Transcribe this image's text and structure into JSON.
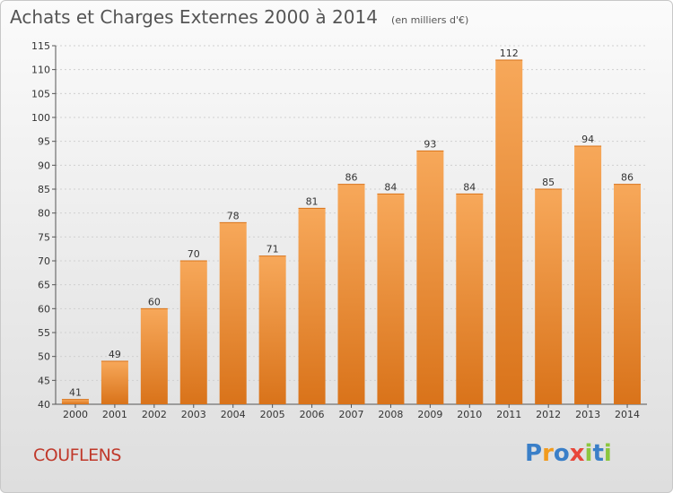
{
  "header": {
    "title": "Achats et Charges Externes 2000 à 2014",
    "subtitle": "(en milliers d'€)"
  },
  "footer": {
    "commune": "COUFLENS",
    "logo_letters": [
      "P",
      "r",
      "o",
      "x",
      "i",
      "t",
      "i"
    ]
  },
  "colors": {
    "bar_light": "#f7a85a",
    "bar_dark": "#d9731a",
    "grid": "#d0d0d0",
    "axis": "#555555"
  },
  "chart_data": {
    "type": "bar",
    "title": "Achats et Charges Externes 2000 à 2014",
    "subtitle": "(en milliers d'€)",
    "xlabel": "",
    "ylabel": "",
    "categories": [
      "2000",
      "2001",
      "2002",
      "2003",
      "2004",
      "2005",
      "2006",
      "2007",
      "2008",
      "2009",
      "2010",
      "2011",
      "2012",
      "2013",
      "2014"
    ],
    "values": [
      41,
      49,
      60,
      70,
      78,
      71,
      81,
      86,
      84,
      93,
      84,
      112,
      85,
      94,
      86
    ],
    "ylim": [
      40,
      115
    ],
    "yticks": [
      40,
      45,
      50,
      55,
      60,
      65,
      70,
      75,
      80,
      85,
      90,
      95,
      100,
      105,
      110,
      115
    ],
    "grid": true,
    "legend": "none"
  }
}
